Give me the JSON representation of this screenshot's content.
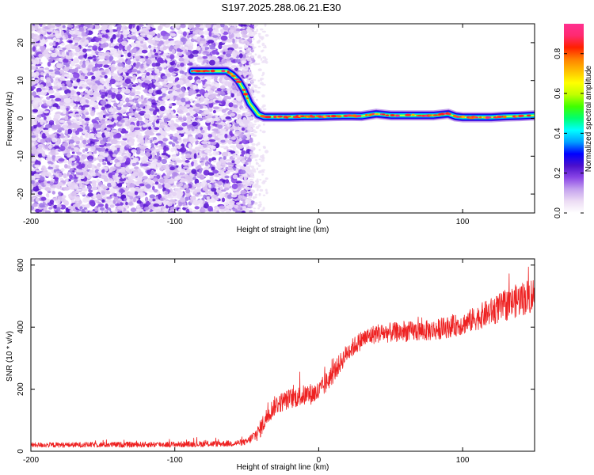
{
  "title": "S197.2025.288.06.21.E30",
  "chart_data": [
    {
      "type": "heatmap",
      "name": "spectrogram",
      "xlabel": "Height of straight line (km)",
      "ylabel": "Frequency (Hz)",
      "xlim": [
        -200,
        150
      ],
      "ylim": [
        -25,
        25
      ],
      "xticks": [
        -200,
        -100,
        0,
        100
      ],
      "yticks": [
        -20,
        -10,
        0,
        10,
        20
      ],
      "noise_region_x": [
        -200,
        -48
      ],
      "ridge": {
        "x": [
          -88,
          -78,
          -70,
          -64,
          -60,
          -56,
          -52,
          -48,
          -45,
          -42,
          -38,
          -30,
          -20,
          -10,
          0,
          10,
          20,
          30,
          40,
          50,
          60,
          70,
          80,
          90,
          95,
          100,
          110,
          120,
          130,
          140,
          150
        ],
        "y": [
          12.5,
          12.5,
          12.5,
          12.5,
          11.5,
          10,
          7.5,
          4,
          2.5,
          1,
          0.4,
          0.4,
          0.4,
          0.5,
          0.5,
          0.6,
          0.7,
          0.6,
          1.2,
          0.8,
          0.8,
          0.8,
          0.8,
          1.2,
          0.5,
          0.3,
          0.3,
          0.3,
          0.5,
          0.6,
          0.8
        ]
      },
      "colorbar": {
        "label": "Normalized spectral amplitude",
        "range": [
          0,
          0.95
        ],
        "ticks": [
          0.0,
          0.2,
          0.4,
          0.6,
          0.8
        ],
        "tick_labels": [
          "0.0",
          "0.2",
          "0.4",
          "0.6",
          "0.8"
        ],
        "colors": [
          "#ffffff",
          "#ecdcf4",
          "#c5a2ee",
          "#8a45e6",
          "#4a10cc",
          "#0000ff",
          "#00a0ff",
          "#00ffff",
          "#00ff70",
          "#40ff00",
          "#c0ff00",
          "#ffff00",
          "#ffc000",
          "#ff8000",
          "#ff2000",
          "#ff2a70",
          "#ff3090"
        ]
      }
    },
    {
      "type": "line",
      "name": "snr",
      "xlabel": "Height of straight line (km)",
      "ylabel": "SNR (10 * v/v)",
      "xlim": [
        -200,
        150
      ],
      "ylim": [
        0,
        620
      ],
      "xticks": [
        -200,
        -100,
        0,
        100
      ],
      "yticks": [
        0,
        200,
        400,
        600
      ],
      "color": "#ee2222",
      "trend": {
        "x": [
          -200,
          -100,
          -60,
          -50,
          -42,
          -35,
          -30,
          -20,
          -10,
          0,
          10,
          20,
          30,
          40,
          60,
          80,
          100,
          120,
          140,
          150
        ],
        "y": [
          20,
          22,
          25,
          30,
          60,
          120,
          150,
          170,
          180,
          190,
          250,
          320,
          360,
          380,
          385,
          390,
          410,
          450,
          490,
          505
        ]
      },
      "noise_amplitude": {
        "x": [
          -200,
          -50,
          -40,
          0,
          20,
          100,
          150
        ],
        "y": [
          8,
          10,
          30,
          35,
          30,
          35,
          60
        ]
      }
    }
  ]
}
